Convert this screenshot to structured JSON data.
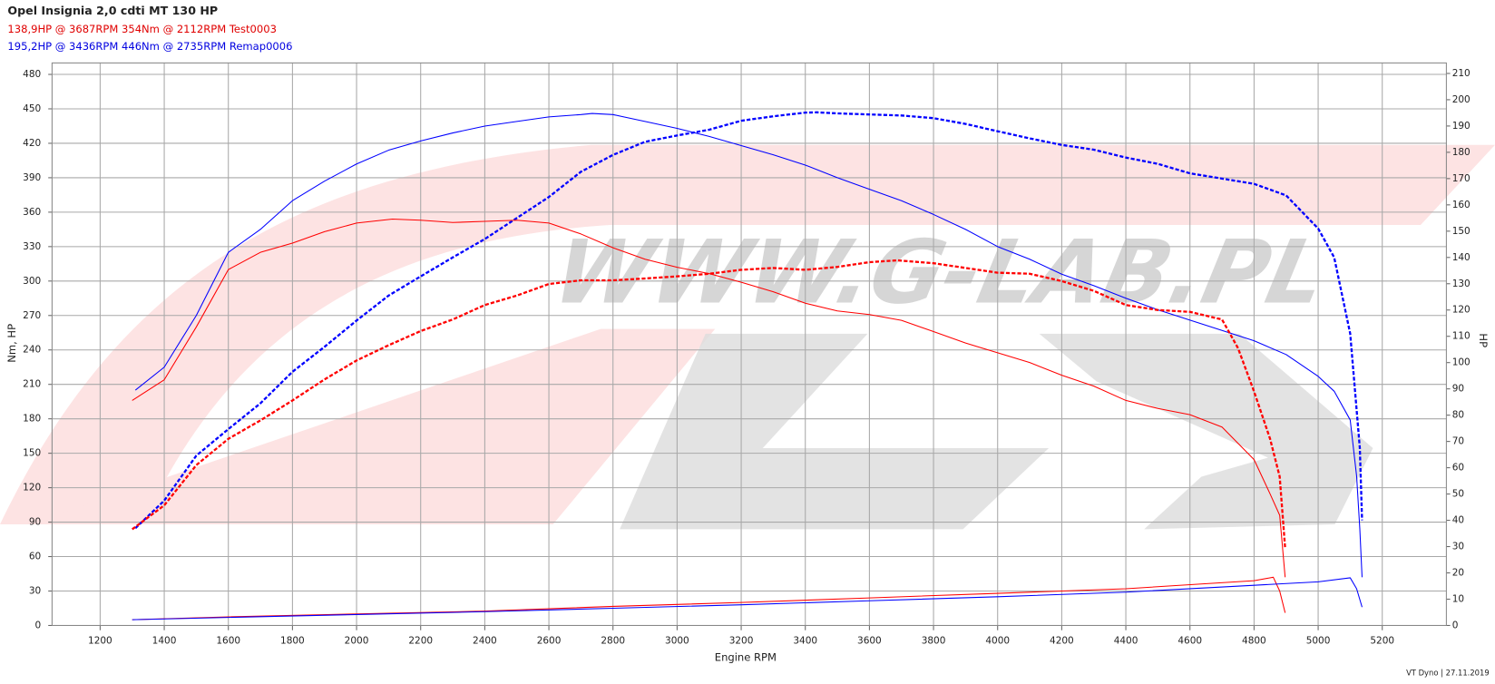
{
  "chart_data": {
    "type": "line",
    "title": "Opel Insignia 2,0 cdti MT 130 HP",
    "header_lines": [
      {
        "text": "138,9HP @  3687RPM  354Nm @ 2112RPM  Test0003",
        "color": "#e00000"
      },
      {
        "text": "195,2HP @  3436RPM  446Nm @ 2735RPM  Remap0006",
        "color": "#0000e0"
      }
    ],
    "watermark": "WWW.G-LAB.PL",
    "x_label": "Engine RPM",
    "y_label": "Nm, HP",
    "y2_label": "HP",
    "footer": "VT Dyno | 27.11.2019",
    "xlim": [
      1050,
      5400
    ],
    "xticks": [
      1200,
      1400,
      1600,
      1800,
      2000,
      2200,
      2400,
      2600,
      2800,
      3000,
      3200,
      3400,
      3600,
      3800,
      4000,
      4200,
      4400,
      4600,
      4800,
      5000,
      5200
    ],
    "ylim": [
      0,
      490
    ],
    "yticks": [
      0,
      30,
      60,
      90,
      120,
      150,
      180,
      210,
      240,
      270,
      300,
      330,
      360,
      390,
      420,
      450,
      480
    ],
    "y2lim": [
      0,
      214
    ],
    "y2ticks": [
      0,
      10,
      20,
      30,
      40,
      50,
      60,
      70,
      80,
      90,
      100,
      110,
      120,
      130,
      140,
      150,
      160,
      170,
      180,
      190,
      200,
      210
    ],
    "grid": true,
    "series": [
      {
        "color": "#0000ff",
        "dashed": false,
        "width": 1,
        "x": [
          1310,
          1400,
          1500,
          1600,
          1700,
          1800,
          1900,
          2000,
          2100,
          2200,
          2300,
          2400,
          2500,
          2600,
          2700,
          2735,
          2800,
          2900,
          3000,
          3100,
          3200,
          3300,
          3400,
          3500,
          3600,
          3700,
          3800,
          3900,
          4000,
          4100,
          4200,
          4300,
          4400,
          4500,
          4600,
          4700,
          4800,
          4900,
          5000,
          5050,
          5100,
          5120,
          5130,
          5137
        ],
        "values": [
          205,
          225,
          270,
          325,
          345,
          370,
          387,
          402,
          414,
          422,
          429,
          435,
          439,
          443,
          445,
          446,
          445,
          439,
          433,
          426,
          418,
          410,
          401,
          390,
          380,
          370,
          358,
          345,
          330,
          319,
          306,
          296,
          285,
          275,
          266,
          257,
          248,
          236,
          217,
          204,
          179,
          130,
          84,
          42
        ]
      },
      {
        "color": "#0000ff",
        "dashed": true,
        "width": 2.2,
        "axis": "y2",
        "x": [
          1310,
          1400,
          1500,
          1600,
          1700,
          1800,
          1900,
          2000,
          2100,
          2200,
          2300,
          2400,
          2500,
          2600,
          2700,
          2800,
          2900,
          3000,
          3100,
          3200,
          3300,
          3400,
          3436,
          3500,
          3600,
          3700,
          3800,
          3900,
          4000,
          4100,
          4200,
          4300,
          4400,
          4500,
          4600,
          4700,
          4800,
          4900,
          5000,
          5050,
          5100,
          5130,
          5137
        ],
        "values": [
          37,
          47.5,
          64.6,
          74.7,
          84.5,
          96.5,
          106,
          116,
          125.5,
          132.8,
          140,
          147,
          155,
          163,
          172.6,
          179,
          184,
          186.4,
          188.6,
          192,
          193.7,
          195.1,
          195.2,
          194.8,
          194.4,
          194,
          193,
          190.8,
          188,
          185.3,
          182.8,
          181,
          178,
          175.6,
          172,
          170,
          168,
          163.6,
          151,
          140,
          111,
          67.5,
          40
        ]
      },
      {
        "color": "#ff0000",
        "dashed": false,
        "width": 1,
        "x": [
          1300,
          1400,
          1500,
          1600,
          1700,
          1800,
          1900,
          2000,
          2112,
          2200,
          2300,
          2400,
          2500,
          2600,
          2700,
          2800,
          2900,
          3000,
          3100,
          3200,
          3300,
          3400,
          3500,
          3600,
          3700,
          3800,
          3900,
          4000,
          4100,
          4200,
          4300,
          4400,
          4500,
          4600,
          4700,
          4800,
          4850,
          4880,
          4897
        ],
        "values": [
          196,
          214,
          260,
          310,
          325,
          333,
          343,
          350.5,
          354,
          353,
          351,
          352,
          353,
          350.5,
          341,
          329,
          319,
          312,
          306.5,
          299,
          290.7,
          280.7,
          274,
          270.8,
          265.8,
          256,
          246,
          237.5,
          229,
          218,
          208.5,
          196,
          189,
          183.6,
          172.8,
          144.5,
          114.6,
          96,
          42
        ]
      },
      {
        "color": "#ff0000",
        "dashed": true,
        "width": 2.2,
        "axis": "y2",
        "x": [
          1300,
          1400,
          1500,
          1600,
          1700,
          1800,
          1900,
          2000,
          2100,
          2200,
          2300,
          2400,
          2500,
          2600,
          2700,
          2800,
          2900,
          3000,
          3100,
          3200,
          3300,
          3400,
          3500,
          3600,
          3687,
          3800,
          3900,
          4000,
          4100,
          4200,
          4300,
          4400,
          4500,
          4600,
          4700,
          4750,
          4800,
          4850,
          4880,
          4897
        ],
        "values": [
          36.6,
          45.7,
          61,
          71,
          78,
          85.6,
          93.6,
          100.8,
          106.6,
          112,
          116.4,
          121.9,
          125.5,
          129.9,
          131.3,
          131.3,
          132,
          132.8,
          133.8,
          135.3,
          136,
          135.3,
          136.4,
          138.2,
          138.9,
          137.8,
          136,
          134.2,
          133.8,
          131,
          127.3,
          121.9,
          120,
          119.3,
          116.4,
          105.5,
          89,
          71,
          56.6,
          29.4
        ]
      },
      {
        "color": "#ff0000",
        "dashed": false,
        "width": 1,
        "x": [
          1300,
          1600,
          2000,
          2400,
          2800,
          3200,
          3600,
          4000,
          4400,
          4800,
          4860,
          4880,
          4897
        ],
        "values": [
          5,
          7.5,
          10,
          12.5,
          16.6,
          20,
          24,
          28,
          32,
          39,
          42,
          30,
          11
        ]
      },
      {
        "color": "#0000ff",
        "dashed": false,
        "width": 1,
        "x": [
          1300,
          1600,
          2000,
          2400,
          2800,
          3200,
          3600,
          4000,
          4400,
          4800,
          5000,
          5100,
          5120,
          5137
        ],
        "values": [
          5,
          7,
          9.5,
          12,
          15,
          18,
          21.5,
          25,
          29,
          35,
          38,
          41.5,
          32,
          16
        ]
      }
    ]
  }
}
